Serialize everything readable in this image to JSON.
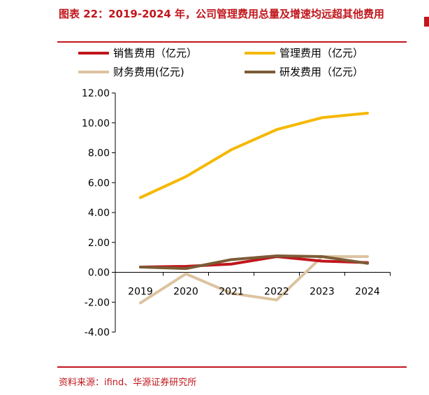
{
  "title": "图表 22：2019-2024 年，公司管理费用总量及增速均远超其他费用",
  "source": "资料来源：ifind、华源证券研究所",
  "chart_data": {
    "type": "line",
    "categories": [
      "2019",
      "2020",
      "2021",
      "2022",
      "2023",
      "2024"
    ],
    "ylim": [
      -4,
      12
    ],
    "yticks": [
      -4,
      -2,
      0,
      2,
      4,
      6,
      8,
      10,
      12
    ],
    "ytick_labels": [
      "-4.00",
      "-2.00",
      "0.00",
      "2.00",
      "4.00",
      "6.00",
      "8.00",
      "10.00",
      "12.00"
    ],
    "series": [
      {
        "name": "销售费用（亿元）",
        "color": "#c0161c",
        "values": [
          0.35,
          0.4,
          0.55,
          1.05,
          0.75,
          0.65
        ]
      },
      {
        "name": "管理费用（亿元）",
        "color": "#f5b800",
        "values": [
          5.0,
          6.4,
          8.2,
          9.55,
          10.35,
          10.65
        ]
      },
      {
        "name": "财务费用(亿元)",
        "color": "#dcc3a0",
        "values": [
          -2.05,
          -0.1,
          -1.4,
          -1.85,
          1.05,
          1.05
        ]
      },
      {
        "name": "研发费用（亿元）",
        "color": "#7b5c36",
        "values": [
          0.35,
          0.25,
          0.85,
          1.1,
          1.05,
          0.6
        ]
      }
    ],
    "title": "",
    "xlabel": "",
    "ylabel": ""
  }
}
